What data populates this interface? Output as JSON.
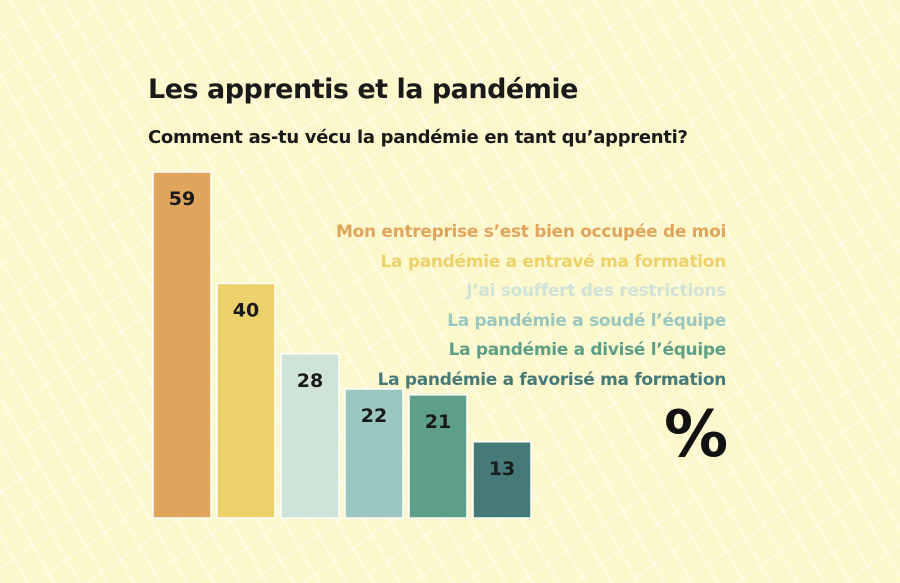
{
  "title": "Les apprentis et la pandémie",
  "subtitle": "Comment as-tu vécu la pandémie en tant qu’apprenti?",
  "unit": "%",
  "chart_data": {
    "type": "bar",
    "title": "Les apprentis et la pandémie",
    "subtitle": "Comment as-tu vécu la pandémie en tant qu’apprenti?",
    "categories": [
      "Mon entreprise s’est bien occupée de moi",
      "La pandémie a entravé ma formation",
      "J’ai souffert des restrictions",
      "La pandémie a soudé l’équipe",
      "La pandémie a divisé l’équipe",
      "La pandémie a favorisé ma formation"
    ],
    "values": [
      59,
      40,
      28,
      22,
      21,
      13
    ],
    "colors": [
      "#e0a55c",
      "#edd16b",
      "#cfe3d8",
      "#9ac7c0",
      "#5e9f88",
      "#467a78"
    ],
    "ylim": [
      0,
      59
    ],
    "grid": false,
    "legend_position": "right"
  }
}
